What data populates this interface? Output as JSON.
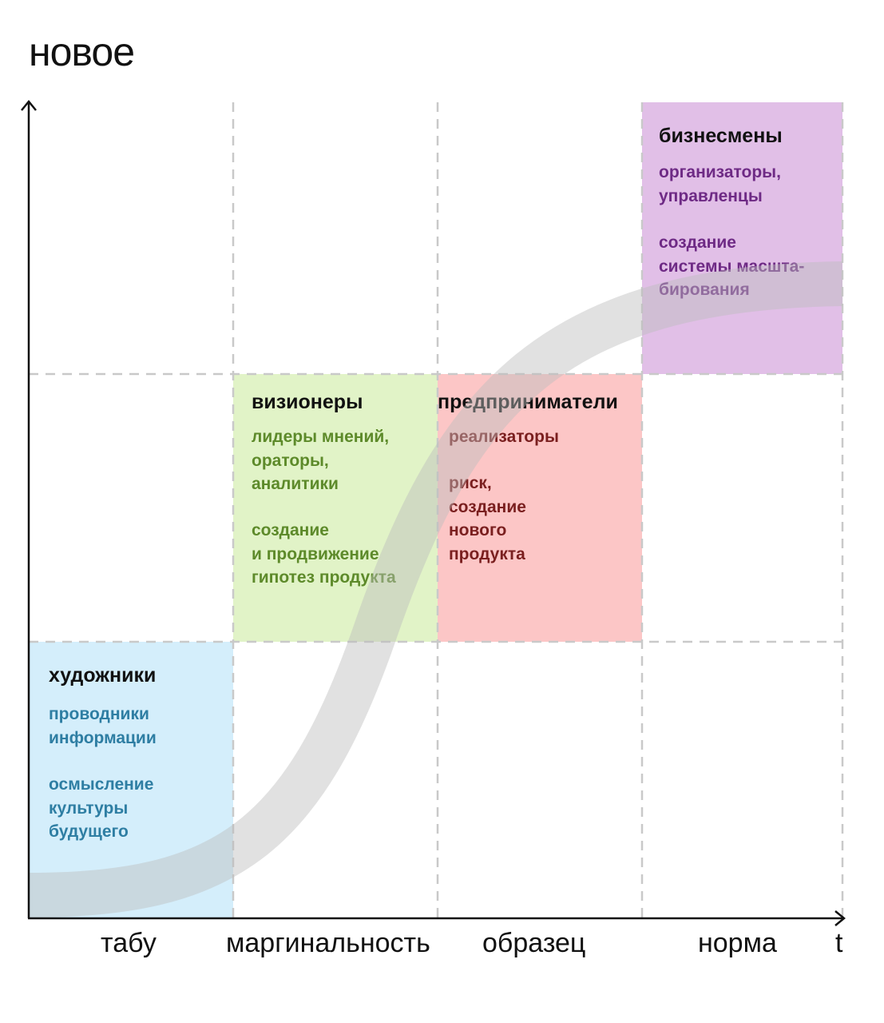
{
  "axes": {
    "y_title": "новое",
    "x_end_label": "t",
    "x_labels": [
      "табу",
      "маргинальность",
      "образец",
      "норма"
    ]
  },
  "boxes": {
    "artists": {
      "title": "художники",
      "roles": "проводники\nинформации",
      "mission": "осмысление\nкультуры\nбудущего",
      "fill": "#d4eefb",
      "text_color": "#2e7ea3"
    },
    "visionaries": {
      "title": "визионеры",
      "roles": "лидеры мнений,\nораторы,\nаналитики",
      "mission": "создание\nи продвижение\nгипотез продукта",
      "fill": "#e1f3c7",
      "text_color": "#5d8a2a"
    },
    "entrepreneurs": {
      "title": "предприниматели",
      "roles": "реализаторы",
      "mission": "риск,\nсоздание\nнового\nпродукта",
      "fill": "#fcc6c6",
      "text_color": "#7a1f1f"
    },
    "businessmen": {
      "title": "бизнесмены",
      "roles": "организаторы,\nуправленцы",
      "mission": "создание\nсистемы масшта-\nбирования",
      "fill": "#e1bfe7",
      "text_color": "#6e2a85"
    }
  },
  "colors": {
    "axis": "#111111",
    "grid": "#c9c9c9",
    "s_curve": "#d6d6d6"
  }
}
